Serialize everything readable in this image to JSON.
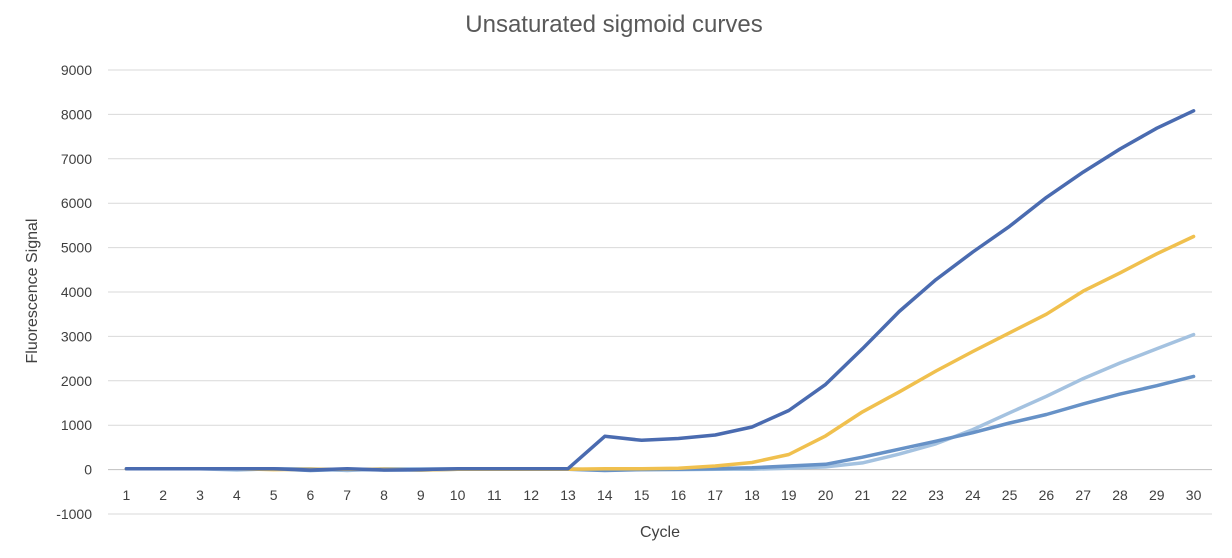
{
  "chart_data": {
    "type": "line",
    "title": "Unsaturated sigmoid curves",
    "xlabel": "Cycle",
    "ylabel": "Fluorescence Signal",
    "categories": [
      "1",
      "2",
      "3",
      "4",
      "5",
      "6",
      "7",
      "8",
      "9",
      "10",
      "11",
      "12",
      "13",
      "14",
      "15",
      "16",
      "17",
      "18",
      "19",
      "20",
      "21",
      "22",
      "23",
      "24",
      "25",
      "26",
      "27",
      "28",
      "29",
      "30"
    ],
    "ylim": [
      -1000,
      9000
    ],
    "yticks": [
      "-1000",
      "0",
      "1000",
      "2000",
      "3000",
      "4000",
      "5000",
      "6000",
      "7000",
      "8000",
      "9000"
    ],
    "grid": true,
    "legend": "none",
    "series": [
      {
        "color": "#a4c2e0",
        "values": [
          20,
          20,
          20,
          -10,
          20,
          20,
          -20,
          20,
          20,
          20,
          20,
          10,
          20,
          -10,
          0,
          0,
          10,
          10,
          30,
          60,
          150,
          350,
          580,
          900,
          1280,
          1650,
          2050,
          2400,
          2720,
          3040
        ]
      },
      {
        "color": "#6792c7",
        "values": [
          20,
          20,
          20,
          20,
          20,
          -20,
          10,
          -10,
          -10,
          10,
          10,
          10,
          10,
          -20,
          0,
          10,
          20,
          40,
          80,
          120,
          280,
          460,
          640,
          830,
          1050,
          1240,
          1480,
          1700,
          1890,
          2100
        ]
      },
      {
        "color": "#f0c04e",
        "values": [
          20,
          20,
          20,
          20,
          0,
          10,
          10,
          10,
          -10,
          10,
          10,
          10,
          10,
          20,
          20,
          30,
          80,
          160,
          340,
          760,
          1300,
          1750,
          2220,
          2660,
          3080,
          3500,
          4020,
          4430,
          4860,
          5250
        ]
      },
      {
        "color": "#4a6bb0",
        "values": [
          20,
          20,
          20,
          20,
          20,
          -10,
          20,
          -10,
          0,
          20,
          20,
          20,
          20,
          750,
          660,
          700,
          780,
          960,
          1330,
          1920,
          2720,
          3560,
          4280,
          4900,
          5480,
          6130,
          6700,
          7220,
          7690,
          8080
        ]
      }
    ]
  }
}
